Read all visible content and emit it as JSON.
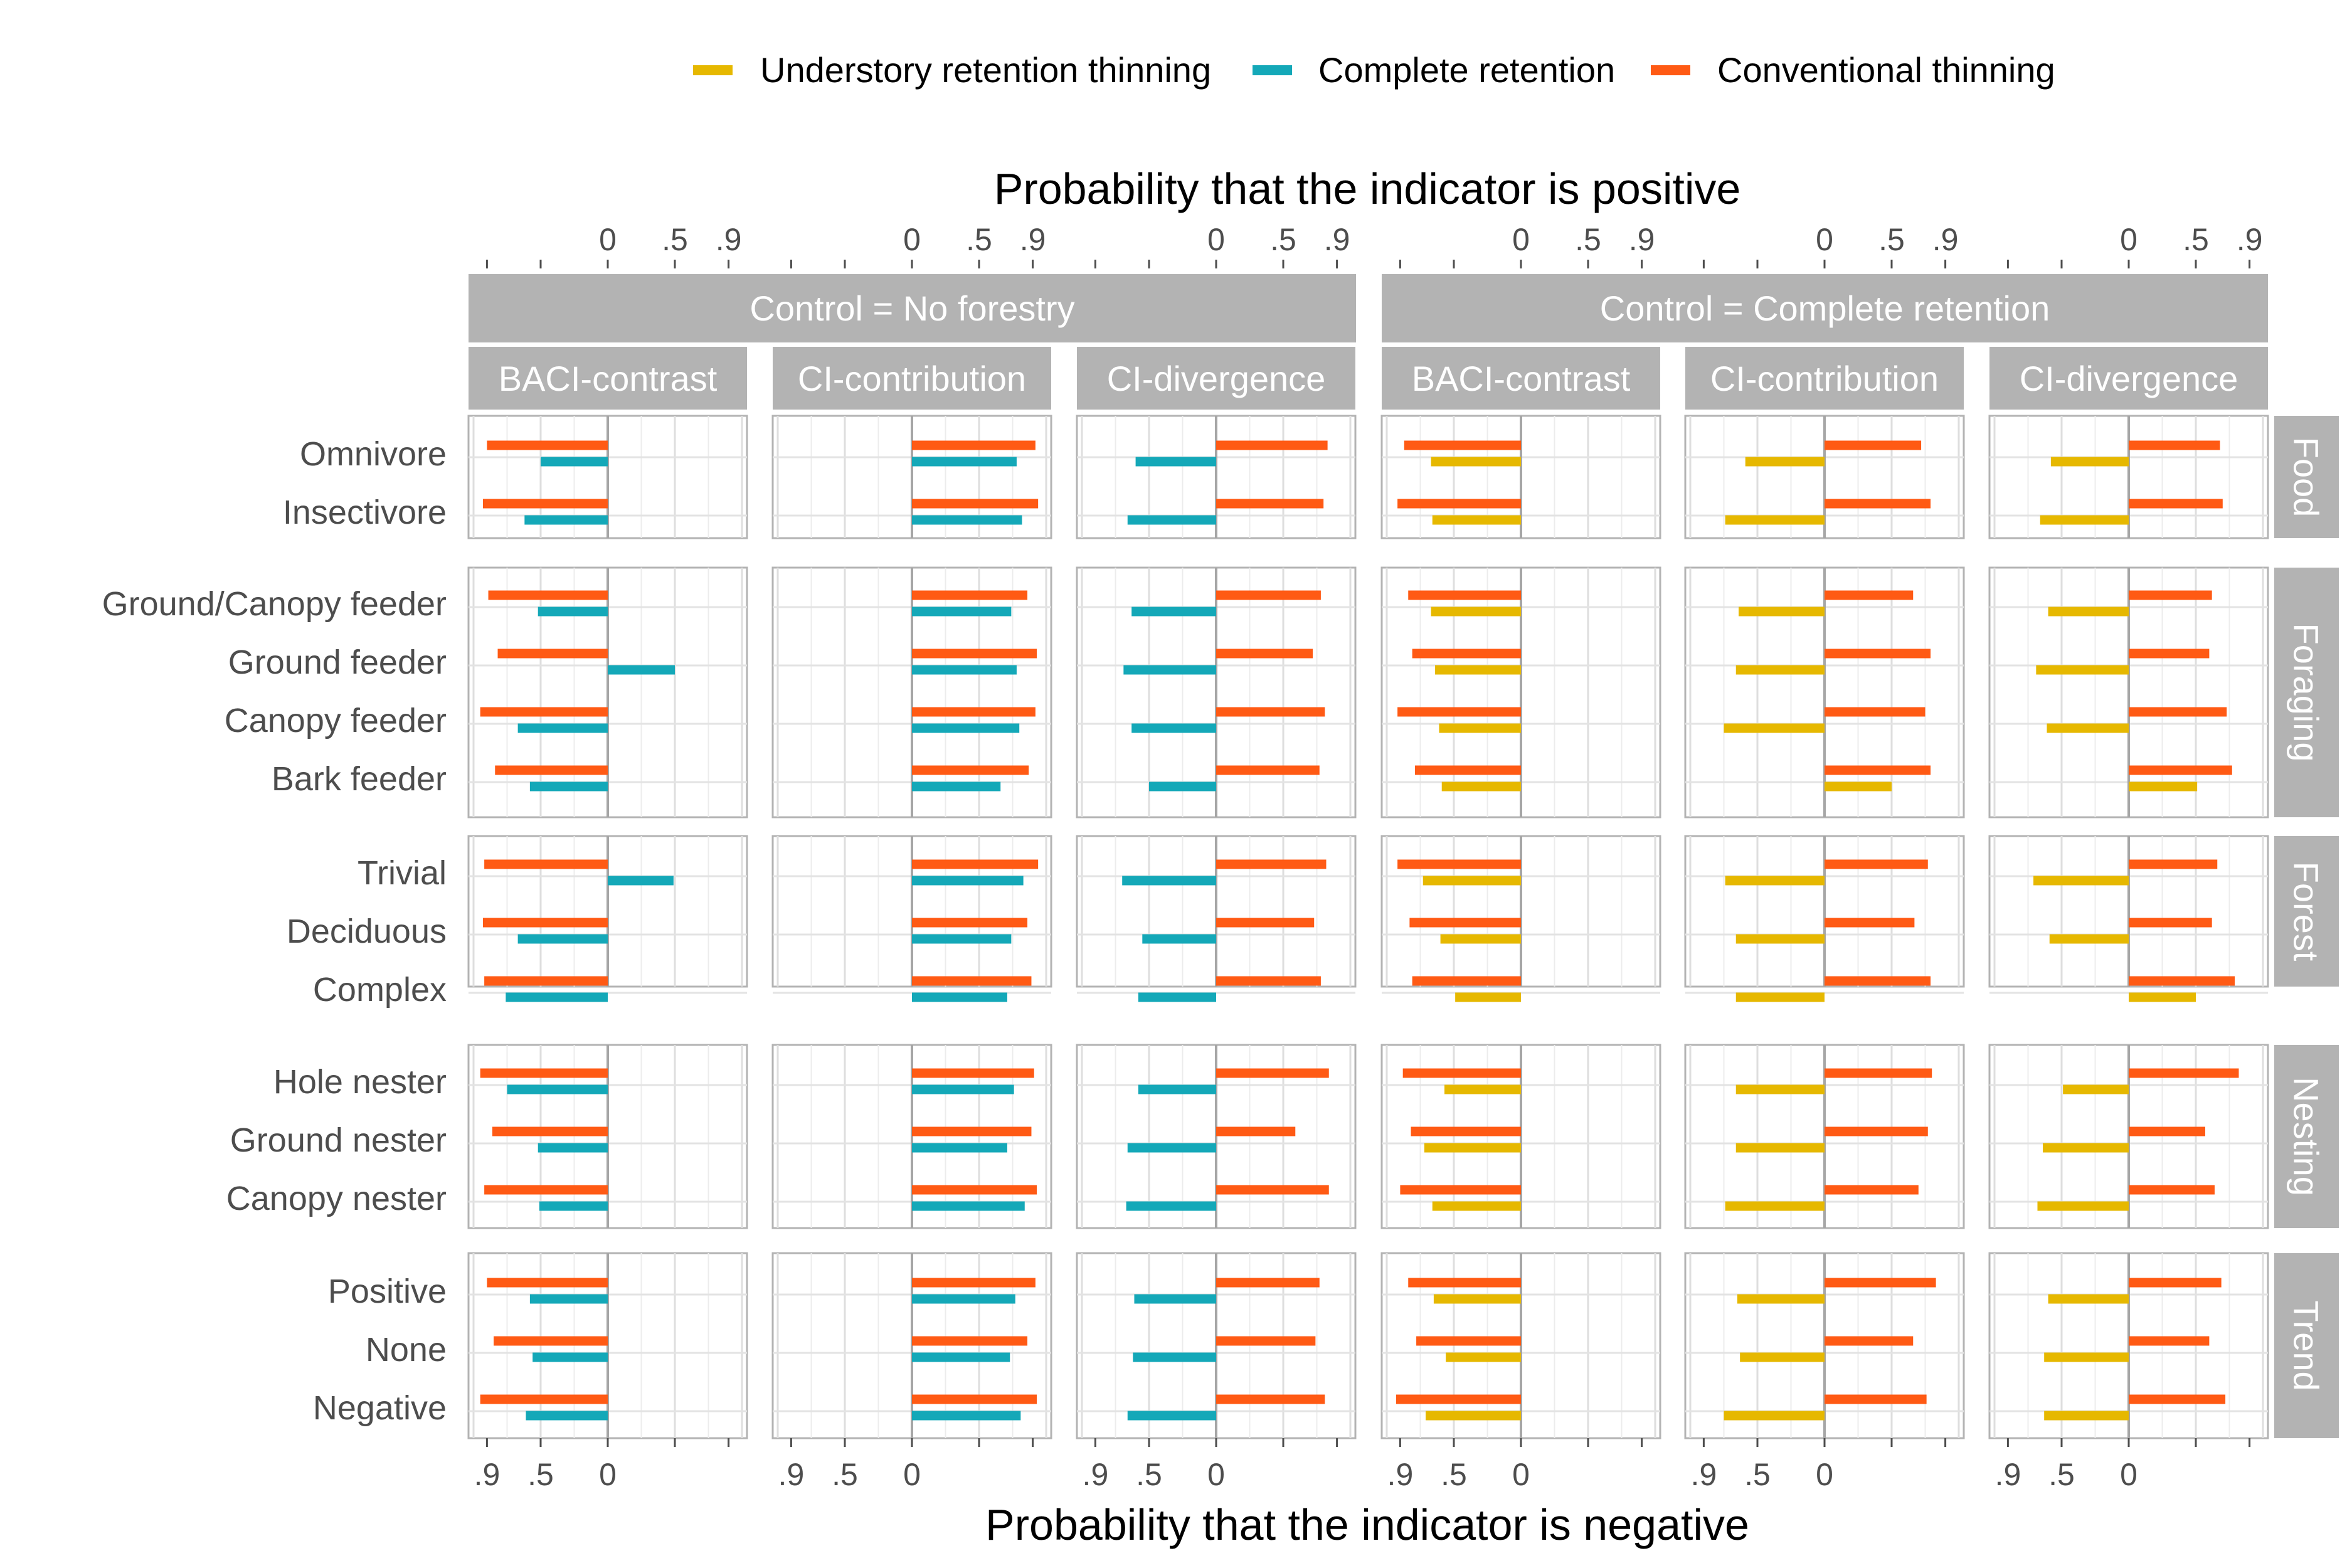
{
  "legend": [
    {
      "name": "Understory retention thinning",
      "color": "#E6B800"
    },
    {
      "name": "Complete retention",
      "color": "#14A8B8"
    },
    {
      "name": "Conventional thinning",
      "color": "#FF5A14"
    }
  ],
  "axis_top_title": "Probability that the indicator is positive",
  "axis_bottom_title": "Probability that the indicator is negative",
  "top_ticks": [
    "0",
    ".5",
    ".9"
  ],
  "bottom_ticks": [
    ".9",
    ".5",
    "0"
  ],
  "controls": [
    "Control = No forestry",
    "Control = Complete retention"
  ],
  "metrics": [
    "BACI-contrast",
    "CI-contribution",
    "CI-divergence"
  ],
  "groups": [
    {
      "name": "Food",
      "rows": [
        "Omnivore",
        "Insectivore"
      ]
    },
    {
      "name": "Foraging",
      "rows": [
        "Ground/Canopy feeder",
        "Ground feeder",
        "Canopy feeder",
        "Bark feeder"
      ]
    },
    {
      "name": "Forest",
      "rows": [
        "Trivial",
        "Deciduous",
        "Complex"
      ]
    },
    {
      "name": "Nesting",
      "rows": [
        "Hole nester",
        "Ground nester",
        "Canopy nester"
      ]
    },
    {
      "name": "Trend",
      "rows": [
        "Positive",
        "None",
        "Negative"
      ]
    }
  ],
  "chart_data": {
    "type": "bar",
    "orientation": "horizontal",
    "value_meaning": "positive values = probability that indicator is positive; negative values = probability that indicator is negative",
    "xlim": [
      -1,
      1
    ],
    "panels": [
      {
        "control": "Control = No forestry",
        "metric": "BACI-contrast",
        "series": [
          {
            "name": "Complete retention",
            "values": [
              -0.5,
              -0.62,
              -0.52,
              0.5,
              -0.67,
              -0.58,
              0.49,
              -0.67,
              -0.76,
              -0.75,
              -0.52,
              -0.51,
              -0.58,
              -0.56,
              -0.61
            ]
          },
          {
            "name": "Conventional thinning",
            "values": [
              -0.9,
              -0.93,
              -0.89,
              -0.82,
              -0.95,
              -0.84,
              -0.92,
              -0.93,
              -0.92,
              -0.95,
              -0.86,
              -0.92,
              -0.9,
              -0.85,
              -0.95
            ]
          }
        ]
      },
      {
        "control": "Control = No forestry",
        "metric": "CI-contribution",
        "series": [
          {
            "name": "Complete retention",
            "values": [
              0.78,
              0.82,
              0.74,
              0.78,
              0.8,
              0.66,
              0.83,
              0.74,
              0.71,
              0.76,
              0.71,
              0.84,
              0.77,
              0.73,
              0.81
            ]
          },
          {
            "name": "Conventional thinning",
            "values": [
              0.92,
              0.94,
              0.86,
              0.93,
              0.92,
              0.87,
              0.94,
              0.86,
              0.89,
              0.91,
              0.89,
              0.93,
              0.92,
              0.86,
              0.93
            ]
          }
        ]
      },
      {
        "control": "Control = No forestry",
        "metric": "CI-divergence",
        "series": [
          {
            "name": "Complete retention",
            "values": [
              -0.6,
              -0.66,
              -0.63,
              -0.69,
              -0.63,
              -0.5,
              -0.7,
              -0.55,
              -0.58,
              -0.58,
              -0.66,
              -0.67,
              -0.61,
              -0.62,
              -0.66
            ]
          },
          {
            "name": "Conventional thinning",
            "values": [
              0.83,
              0.8,
              0.78,
              0.72,
              0.81,
              0.77,
              0.82,
              0.73,
              0.78,
              0.84,
              0.59,
              0.84,
              0.77,
              0.74,
              0.81
            ]
          }
        ]
      },
      {
        "control": "Control = Complete retention",
        "metric": "BACI-contrast",
        "series": [
          {
            "name": "Understory retention thinning",
            "values": [
              -0.67,
              -0.66,
              -0.67,
              -0.64,
              -0.61,
              -0.59,
              -0.73,
              -0.6,
              -0.49,
              -0.57,
              -0.72,
              -0.66,
              -0.65,
              -0.56,
              -0.71
            ]
          },
          {
            "name": "Conventional thinning",
            "values": [
              -0.87,
              -0.92,
              -0.84,
              -0.81,
              -0.92,
              -0.79,
              -0.92,
              -0.83,
              -0.81,
              -0.88,
              -0.82,
              -0.9,
              -0.84,
              -0.78,
              -0.93
            ]
          }
        ]
      },
      {
        "control": "Control = Complete retention",
        "metric": "CI-contribution",
        "series": [
          {
            "name": "Understory retention thinning",
            "values": [
              -0.59,
              -0.74,
              -0.64,
              -0.66,
              -0.75,
              0.5,
              -0.74,
              -0.66,
              -0.66,
              -0.66,
              -0.66,
              -0.74,
              -0.65,
              -0.63,
              -0.75
            ]
          },
          {
            "name": "Conventional thinning",
            "values": [
              0.72,
              0.79,
              0.66,
              0.79,
              0.75,
              0.79,
              0.77,
              0.67,
              0.79,
              0.8,
              0.77,
              0.7,
              0.83,
              0.66,
              0.76
            ]
          }
        ]
      },
      {
        "control": "Control = Complete retention",
        "metric": "CI-divergence",
        "series": [
          {
            "name": "Understory retention thinning",
            "values": [
              -0.58,
              -0.66,
              -0.6,
              -0.69,
              -0.61,
              0.51,
              -0.71,
              -0.59,
              0.5,
              -0.49,
              -0.64,
              -0.68,
              -0.6,
              -0.63,
              -0.63
            ]
          },
          {
            "name": "Conventional thinning",
            "values": [
              0.68,
              0.7,
              0.62,
              0.6,
              0.73,
              0.77,
              0.66,
              0.62,
              0.79,
              0.82,
              0.57,
              0.64,
              0.69,
              0.6,
              0.72
            ]
          }
        ]
      }
    ]
  }
}
